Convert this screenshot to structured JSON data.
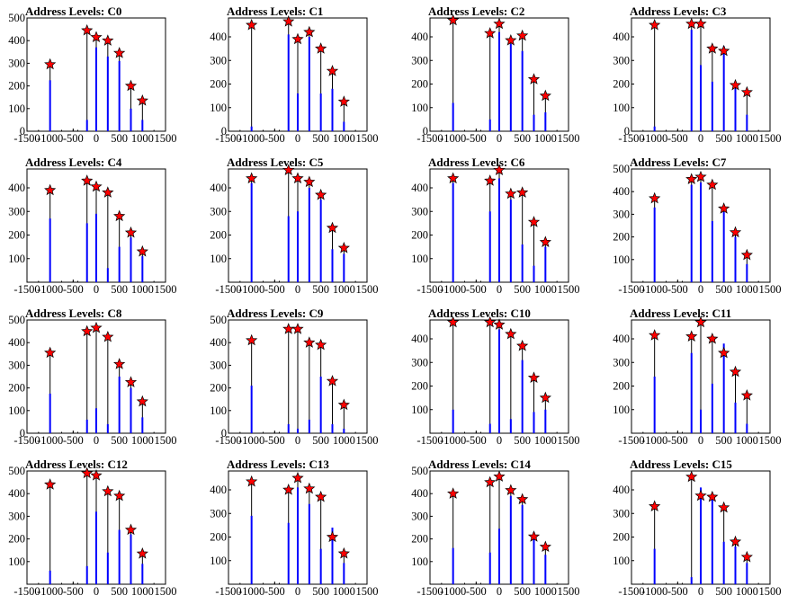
{
  "figure": {
    "xticks": [
      "-1500",
      "-1000",
      "-500",
      "0",
      "500",
      "1000",
      "1500"
    ],
    "star_color": "#ff0000",
    "bar_color": "#0000ff",
    "stem_color": "#000000"
  },
  "chart_data": [
    {
      "type": "bar",
      "title": "Address Levels: C0",
      "xlim": [
        -1500,
        1500
      ],
      "ylim": [
        0,
        500
      ],
      "yticks": [
        0,
        100,
        200,
        300,
        400,
        500
      ],
      "peaks": [
        {
          "x": -1000,
          "y": 295,
          "bar": 225
        },
        {
          "x": -200,
          "y": 445,
          "bar": 50
        },
        {
          "x": 0,
          "y": 415,
          "bar": 370
        },
        {
          "x": 250,
          "y": 400,
          "bar": 330
        },
        {
          "x": 500,
          "y": 345,
          "bar": 310
        },
        {
          "x": 750,
          "y": 200,
          "bar": 100
        },
        {
          "x": 1000,
          "y": 135,
          "bar": 50
        }
      ]
    },
    {
      "type": "bar",
      "title": "Address Levels: C1",
      "xlim": [
        -1500,
        1500
      ],
      "ylim": [
        0,
        480
      ],
      "yticks": [
        0,
        100,
        200,
        300,
        400
      ],
      "peaks": [
        {
          "x": -1000,
          "y": 450,
          "bar": 20
        },
        {
          "x": -200,
          "y": 465,
          "bar": 410
        },
        {
          "x": 0,
          "y": 390,
          "bar": 160
        },
        {
          "x": 250,
          "y": 420,
          "bar": 400
        },
        {
          "x": 500,
          "y": 350,
          "bar": 160
        },
        {
          "x": 750,
          "y": 255,
          "bar": 180
        },
        {
          "x": 1000,
          "y": 125,
          "bar": 40
        }
      ]
    },
    {
      "type": "bar",
      "title": "Address Levels: C2",
      "xlim": [
        -1500,
        1500
      ],
      "ylim": [
        0,
        480
      ],
      "yticks": [
        0,
        100,
        200,
        300,
        400
      ],
      "peaks": [
        {
          "x": -1000,
          "y": 470,
          "bar": 120
        },
        {
          "x": -200,
          "y": 415,
          "bar": 50
        },
        {
          "x": 0,
          "y": 455,
          "bar": 420
        },
        {
          "x": 250,
          "y": 385,
          "bar": 370
        },
        {
          "x": 500,
          "y": 405,
          "bar": 340
        },
        {
          "x": 750,
          "y": 220,
          "bar": 70
        },
        {
          "x": 1000,
          "y": 150,
          "bar": 80
        }
      ]
    },
    {
      "type": "bar",
      "title": "Address Levels: C3",
      "xlim": [
        -1500,
        1500
      ],
      "ylim": [
        0,
        480
      ],
      "yticks": [
        0,
        100,
        200,
        300,
        400
      ],
      "peaks": [
        {
          "x": -1000,
          "y": 450,
          "bar": 20
        },
        {
          "x": -200,
          "y": 455,
          "bar": 430
        },
        {
          "x": 0,
          "y": 455,
          "bar": 280
        },
        {
          "x": 250,
          "y": 350,
          "bar": 210
        },
        {
          "x": 500,
          "y": 340,
          "bar": 360
        },
        {
          "x": 750,
          "y": 195,
          "bar": 180
        },
        {
          "x": 1000,
          "y": 165,
          "bar": 70
        }
      ]
    },
    {
      "type": "bar",
      "title": "Address Levels: C4",
      "xlim": [
        -1500,
        1500
      ],
      "ylim": [
        0,
        480
      ],
      "yticks": [
        100,
        200,
        300,
        400
      ],
      "peaks": [
        {
          "x": -1000,
          "y": 390,
          "bar": 270
        },
        {
          "x": -200,
          "y": 430,
          "bar": 250
        },
        {
          "x": 0,
          "y": 405,
          "bar": 290
        },
        {
          "x": 250,
          "y": 380,
          "bar": 60
        },
        {
          "x": 500,
          "y": 280,
          "bar": 150
        },
        {
          "x": 750,
          "y": 210,
          "bar": 190
        },
        {
          "x": 1000,
          "y": 130,
          "bar": 110
        }
      ]
    },
    {
      "type": "bar",
      "title": "Address Levels: C5",
      "xlim": [
        -1500,
        1500
      ],
      "ylim": [
        0,
        480
      ],
      "yticks": [
        100,
        200,
        300,
        400
      ],
      "peaks": [
        {
          "x": -1000,
          "y": 440,
          "bar": 420
        },
        {
          "x": -200,
          "y": 475,
          "bar": 280
        },
        {
          "x": 0,
          "y": 440,
          "bar": 300
        },
        {
          "x": 250,
          "y": 425,
          "bar": 400
        },
        {
          "x": 500,
          "y": 370,
          "bar": 350
        },
        {
          "x": 750,
          "y": 230,
          "bar": 140
        },
        {
          "x": 1000,
          "y": 145,
          "bar": 120
        }
      ]
    },
    {
      "type": "bar",
      "title": "Address Levels: C6",
      "xlim": [
        -1500,
        1500
      ],
      "ylim": [
        0,
        480
      ],
      "yticks": [
        100,
        200,
        300,
        400
      ],
      "peaks": [
        {
          "x": -1000,
          "y": 440,
          "bar": 420
        },
        {
          "x": -200,
          "y": 430,
          "bar": 300
        },
        {
          "x": 0,
          "y": 475,
          "bar": 440
        },
        {
          "x": 250,
          "y": 375,
          "bar": 350
        },
        {
          "x": 500,
          "y": 380,
          "bar": 160
        },
        {
          "x": 750,
          "y": 255,
          "bar": 70
        },
        {
          "x": 1000,
          "y": 170,
          "bar": 150
        }
      ]
    },
    {
      "type": "bar",
      "title": "Address Levels: C7",
      "xlim": [
        -1500,
        1500
      ],
      "ylim": [
        0,
        500
      ],
      "yticks": [
        100,
        200,
        300,
        400,
        500
      ],
      "peaks": [
        {
          "x": -1000,
          "y": 370,
          "bar": 330
        },
        {
          "x": -200,
          "y": 455,
          "bar": 430
        },
        {
          "x": 0,
          "y": 465,
          "bar": 440
        },
        {
          "x": 250,
          "y": 430,
          "bar": 270
        },
        {
          "x": 500,
          "y": 325,
          "bar": 310
        },
        {
          "x": 750,
          "y": 220,
          "bar": 200
        },
        {
          "x": 1000,
          "y": 120,
          "bar": 80
        }
      ]
    },
    {
      "type": "bar",
      "title": "Address Levels: C8",
      "xlim": [
        -1500,
        1500
      ],
      "ylim": [
        0,
        500
      ],
      "yticks": [
        0,
        100,
        200,
        300,
        400,
        500
      ],
      "peaks": [
        {
          "x": -1000,
          "y": 355,
          "bar": 175
        },
        {
          "x": -200,
          "y": 450,
          "bar": 60
        },
        {
          "x": 0,
          "y": 465,
          "bar": 110
        },
        {
          "x": 250,
          "y": 425,
          "bar": 40
        },
        {
          "x": 500,
          "y": 305,
          "bar": 250
        },
        {
          "x": 750,
          "y": 225,
          "bar": 200
        },
        {
          "x": 1000,
          "y": 140,
          "bar": 70
        }
      ]
    },
    {
      "type": "bar",
      "title": "Address Levels: C9",
      "xlim": [
        -1500,
        1500
      ],
      "ylim": [
        0,
        500
      ],
      "yticks": [
        0,
        100,
        200,
        300,
        400,
        500
      ],
      "peaks": [
        {
          "x": -1000,
          "y": 410,
          "bar": 210
        },
        {
          "x": -200,
          "y": 460,
          "bar": 40
        },
        {
          "x": 0,
          "y": 460,
          "bar": 20
        },
        {
          "x": 250,
          "y": 400,
          "bar": 60
        },
        {
          "x": 500,
          "y": 390,
          "bar": 250
        },
        {
          "x": 750,
          "y": 230,
          "bar": 40
        },
        {
          "x": 1000,
          "y": 125,
          "bar": 20
        }
      ]
    },
    {
      "type": "bar",
      "title": "Address Levels: C10",
      "xlim": [
        -1500,
        1500
      ],
      "ylim": [
        0,
        480
      ],
      "yticks": [
        100,
        200,
        300,
        400
      ],
      "peaks": [
        {
          "x": -1000,
          "y": 470,
          "bar": 100
        },
        {
          "x": -200,
          "y": 470,
          "bar": 40
        },
        {
          "x": 0,
          "y": 460,
          "bar": 440
        },
        {
          "x": 250,
          "y": 420,
          "bar": 60
        },
        {
          "x": 500,
          "y": 370,
          "bar": 310
        },
        {
          "x": 750,
          "y": 235,
          "bar": 90
        },
        {
          "x": 1000,
          "y": 150,
          "bar": 100
        }
      ]
    },
    {
      "type": "bar",
      "title": "Address Levels: C11",
      "xlim": [
        -1500,
        1500
      ],
      "ylim": [
        0,
        480
      ],
      "yticks": [
        100,
        200,
        300,
        400
      ],
      "peaks": [
        {
          "x": -1000,
          "y": 415,
          "bar": 240
        },
        {
          "x": -200,
          "y": 410,
          "bar": 340
        },
        {
          "x": 0,
          "y": 470,
          "bar": 100
        },
        {
          "x": 250,
          "y": 400,
          "bar": 210
        },
        {
          "x": 500,
          "y": 340,
          "bar": 380
        },
        {
          "x": 750,
          "y": 260,
          "bar": 130
        },
        {
          "x": 1000,
          "y": 160,
          "bar": 40
        }
      ]
    },
    {
      "type": "bar",
      "title": "Address Levels: C12",
      "xlim": [
        -1500,
        1500
      ],
      "ylim": [
        0,
        500
      ],
      "yticks": [
        100,
        200,
        300,
        400,
        500
      ],
      "peaks": [
        {
          "x": -1000,
          "y": 440,
          "bar": 60
        },
        {
          "x": -200,
          "y": 490,
          "bar": 80
        },
        {
          "x": 0,
          "y": 480,
          "bar": 320
        },
        {
          "x": 250,
          "y": 410,
          "bar": 140
        },
        {
          "x": 500,
          "y": 390,
          "bar": 240
        },
        {
          "x": 750,
          "y": 240,
          "bar": 220
        },
        {
          "x": 1000,
          "y": 135,
          "bar": 90
        }
      ]
    },
    {
      "type": "bar",
      "title": "Address Levels: C13",
      "xlim": [
        -1500,
        1500
      ],
      "ylim": [
        0,
        480
      ],
      "yticks": [
        100,
        200,
        300,
        400
      ],
      "peaks": [
        {
          "x": -1000,
          "y": 435,
          "bar": 290
        },
        {
          "x": -200,
          "y": 400,
          "bar": 260
        },
        {
          "x": 0,
          "y": 450,
          "bar": 410
        },
        {
          "x": 250,
          "y": 405,
          "bar": 340
        },
        {
          "x": 500,
          "y": 370,
          "bar": 150
        },
        {
          "x": 750,
          "y": 200,
          "bar": 240
        },
        {
          "x": 1000,
          "y": 130,
          "bar": 90
        }
      ]
    },
    {
      "type": "bar",
      "title": "Address Levels: C14",
      "xlim": [
        -1500,
        1500
      ],
      "ylim": [
        0,
        500
      ],
      "yticks": [
        100,
        200,
        300,
        400,
        500
      ],
      "peaks": [
        {
          "x": -1000,
          "y": 400,
          "bar": 160
        },
        {
          "x": -200,
          "y": 450,
          "bar": 140
        },
        {
          "x": 0,
          "y": 475,
          "bar": 245
        },
        {
          "x": 250,
          "y": 415,
          "bar": 390
        },
        {
          "x": 500,
          "y": 375,
          "bar": 350
        },
        {
          "x": 750,
          "y": 210,
          "bar": 230
        },
        {
          "x": 1000,
          "y": 165,
          "bar": 130
        }
      ]
    },
    {
      "type": "bar",
      "title": "Address Levels: C15",
      "xlim": [
        -1500,
        1500
      ],
      "ylim": [
        0,
        480
      ],
      "yticks": [
        100,
        200,
        300,
        400
      ],
      "peaks": [
        {
          "x": -1000,
          "y": 330,
          "bar": 150
        },
        {
          "x": -200,
          "y": 455,
          "bar": 30
        },
        {
          "x": 0,
          "y": 375,
          "bar": 410
        },
        {
          "x": 250,
          "y": 370,
          "bar": 360
        },
        {
          "x": 500,
          "y": 325,
          "bar": 180
        },
        {
          "x": 750,
          "y": 180,
          "bar": 160
        },
        {
          "x": 1000,
          "y": 115,
          "bar": 90
        }
      ]
    }
  ]
}
